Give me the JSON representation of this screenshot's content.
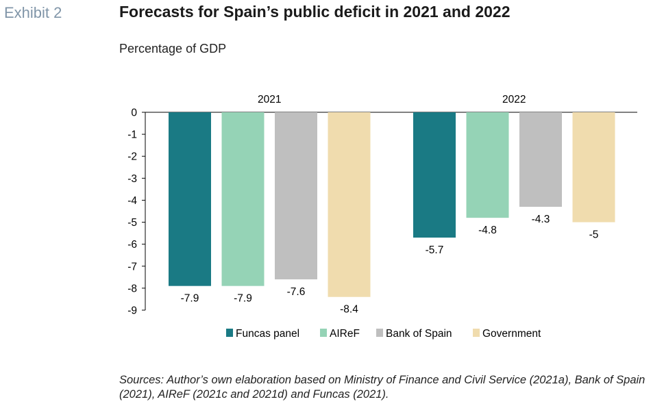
{
  "header": {
    "exhibit": "Exhibit 2",
    "title": "Forecasts for Spain’s public deficit in 2021 and 2022",
    "subtitle": "Percentage of GDP"
  },
  "footer": {
    "sources": "Sources: Author’s own elaboration based on Ministry of Finance and Civil Service (2021a), Bank of Spain (2021), AIReF (2021c and 2021d) and Funcas (2021)."
  },
  "chart_data": {
    "type": "bar",
    "title": "Forecasts for Spain’s public deficit in 2021 and 2022",
    "ylabel": "Percentage of GDP",
    "categories": [
      "2021",
      "2022"
    ],
    "ylim": [
      -9,
      0
    ],
    "yticks": [
      0,
      -1,
      -2,
      -3,
      -4,
      -5,
      -6,
      -7,
      -8,
      -9
    ],
    "grid": false,
    "legend_position": "bottom",
    "series": [
      {
        "name": "Funcas panel",
        "color": "#1a7a84",
        "values": [
          -7.9,
          -5.7
        ]
      },
      {
        "name": "AIReF",
        "color": "#95d3b6",
        "values": [
          -7.9,
          -4.8
        ]
      },
      {
        "name": "Bank of Spain",
        "color": "#bfbfbf",
        "values": [
          -7.6,
          -4.3
        ]
      },
      {
        "name": "Government",
        "color": "#f0dcae",
        "values": [
          -8.4,
          -5
        ]
      }
    ]
  }
}
